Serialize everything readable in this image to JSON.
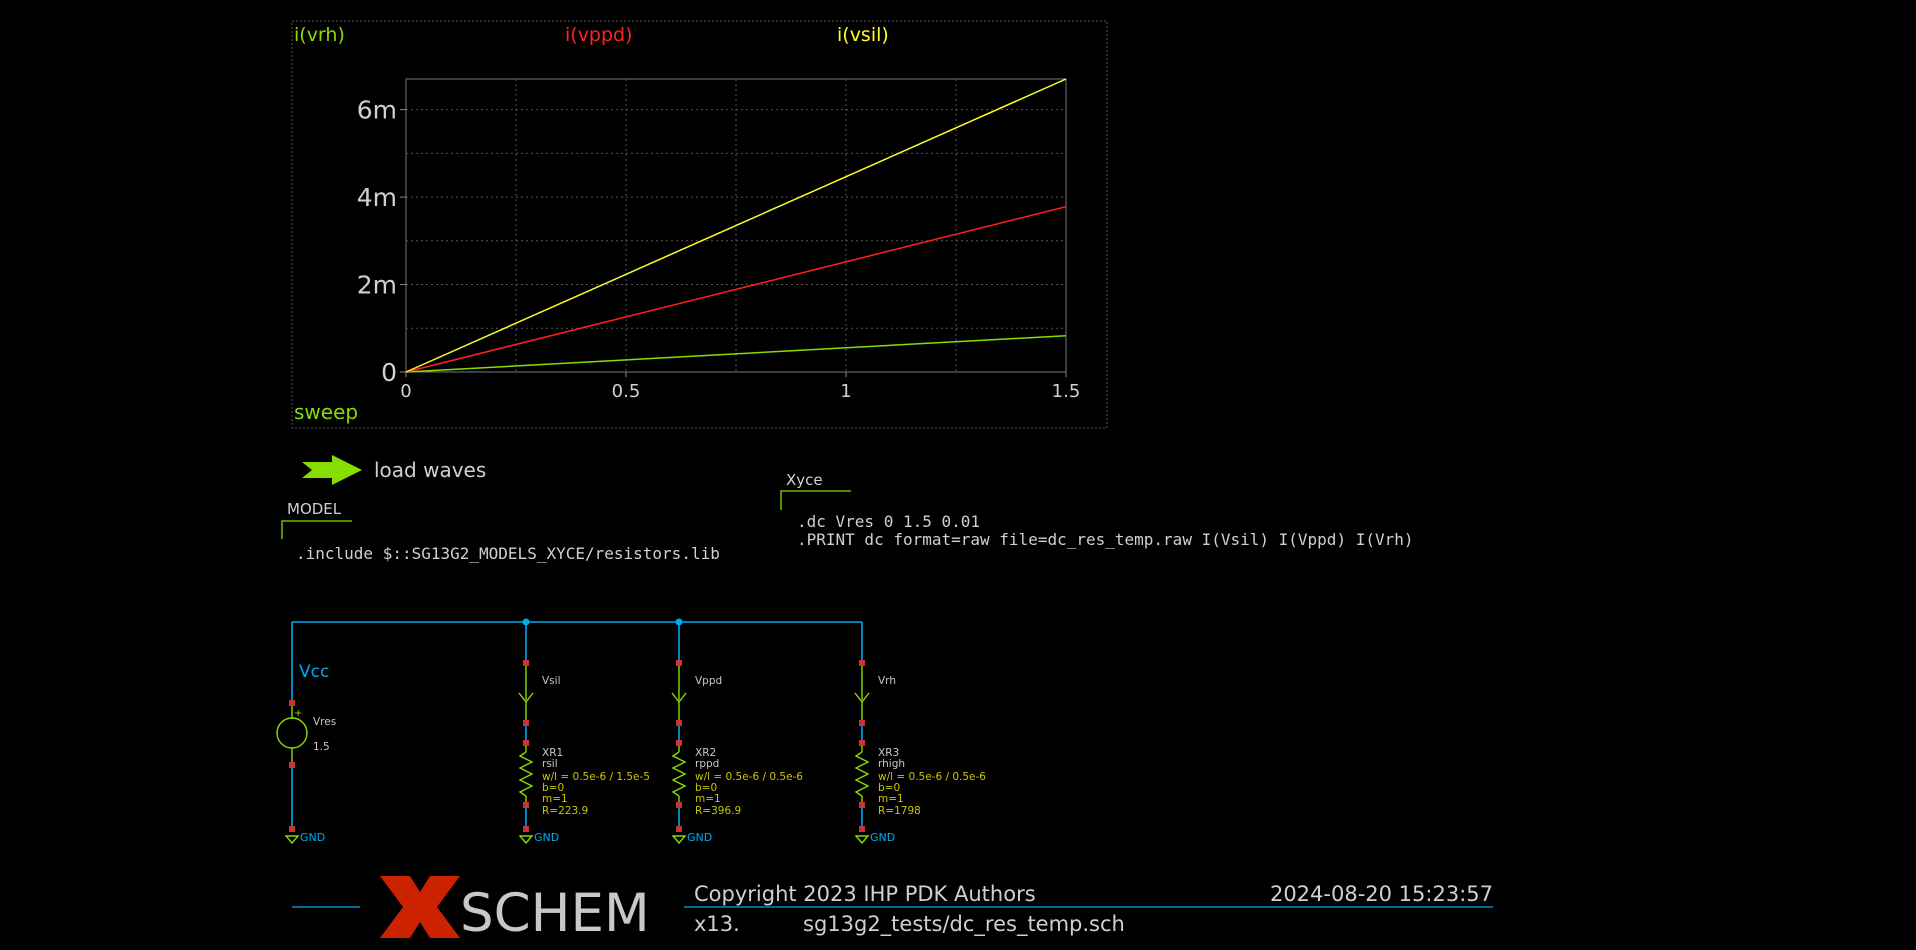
{
  "colors": {
    "background": "#000000",
    "wire": "#00aaee",
    "component": "#88dd00",
    "pin": "#cc3333",
    "trace_vrh": "#88dd00",
    "trace_vppd": "#ff2222",
    "trace_vsil": "#ffff22",
    "logo_x": "#cc2200"
  },
  "graph": {
    "legend_vrh": "i(vrh)",
    "legend_vppd": "i(vppd)",
    "legend_vsil": "i(vsil)",
    "sweep_label": "sweep"
  },
  "chart_data": {
    "type": "line",
    "x": [
      0,
      1.5
    ],
    "xlim": [
      0,
      1.5
    ],
    "ylim": [
      0,
      0.0067
    ],
    "x_ticks": [
      "0",
      "0.5",
      "1",
      "1.5"
    ],
    "y_ticks": [
      "0",
      "2m",
      "4m",
      "6m"
    ],
    "xlabel": "sweep",
    "grid": true,
    "series": [
      {
        "name": "i(vrh)",
        "color": "#88dd00",
        "values": [
          0,
          0.00083
        ]
      },
      {
        "name": "i(vppd)",
        "color": "#ff2222",
        "values": [
          0,
          0.00378
        ]
      },
      {
        "name": "i(vsil)",
        "color": "#ffff22",
        "values": [
          0,
          0.0067
        ]
      }
    ]
  },
  "load_waves": {
    "label": "load waves",
    "icon": "arrow-right-icon"
  },
  "model_block": {
    "title": "MODEL",
    "text": ".include $::SG13G2_MODELS_XYCE/resistors.lib"
  },
  "xyce_block": {
    "title": "Xyce",
    "line1": ".dc Vres 0 1.5 0.01",
    "line2": ".PRINT  dc format=raw file=dc_res_temp.raw  I(Vsil) I(Vppd)  I(Vrh)"
  },
  "schematic": {
    "vcc_label": "Vcc",
    "source": {
      "name": "Vres",
      "value": "1.5",
      "plus": "+"
    },
    "gnd_label": "GND",
    "branches": [
      {
        "ammeter": "Vsil",
        "ref": "XR1",
        "model": "rsil",
        "wl": "w/l = 0.5e-6 / 1.5e-5",
        "b": "b=0",
        "m": "m=1",
        "r": "R=223.9"
      },
      {
        "ammeter": "Vppd",
        "ref": "XR2",
        "model": "rppd",
        "wl": "w/l = 0.5e-6 / 0.5e-6",
        "b": "b=0",
        "m": "m=1",
        "r": "R=396.9"
      },
      {
        "ammeter": "Vrh",
        "ref": "XR3",
        "model": "rhigh",
        "wl": "w/l = 0.5e-6 / 0.5e-6",
        "b": "b=0",
        "m": "m=1",
        "r": "R=1798"
      }
    ]
  },
  "title_block": {
    "logo_x": "X",
    "logo_text": "SCHEM",
    "copyright": "Copyright 2023 IHP PDK Authors",
    "datetime": "2024-08-20  15:23:57",
    "version": "x13.",
    "filename": "sg13g2_tests/dc_res_temp.sch"
  }
}
